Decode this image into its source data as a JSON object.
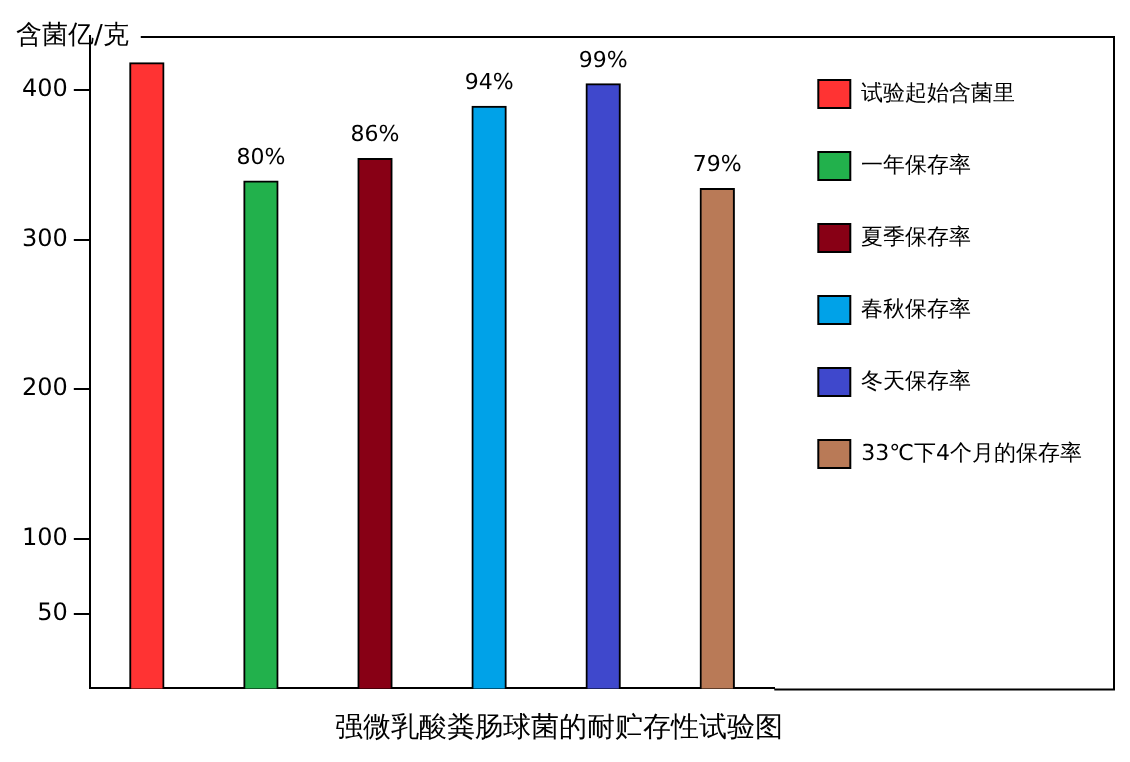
{
  "chart_data": {
    "type": "bar",
    "title": "强微乳酸粪肠球菌的耐贮存性试验图",
    "ylabel": "含菌亿/克",
    "categories": [
      null,
      null,
      null,
      null,
      null,
      null
    ],
    "series": [
      {
        "name": "试验起始含菌里",
        "color": "#ff3333",
        "values": [
          418,
          null,
          null,
          null,
          null,
          null
        ]
      },
      {
        "name": "一年保存率",
        "color": "#22b14c",
        "values": [
          null,
          339,
          null,
          null,
          null,
          null
        ]
      },
      {
        "name": "夏季保存率",
        "color": "#880015",
        "values": [
          null,
          null,
          354,
          null,
          null,
          null
        ]
      },
      {
        "name": "春秋保存率",
        "color": "#00a2e8",
        "values": [
          null,
          null,
          null,
          389,
          null,
          null
        ]
      },
      {
        "name": "冬天保存率",
        "color": "#3f48cc",
        "values": [
          null,
          null,
          null,
          null,
          404,
          null
        ]
      },
      {
        "name": "33℃下4个月的保存率",
        "color": "#b97a57",
        "values": [
          null,
          null,
          null,
          null,
          null,
          334
        ]
      }
    ],
    "annotations": [
      "80%",
      "86%",
      "94%",
      "99%",
      "79%"
    ],
    "stacked": true,
    "ylim": [
      0,
      436
    ],
    "yticks": [
      50,
      100,
      200,
      300,
      400
    ],
    "grid": false,
    "legend": "right",
    "tick_labels": "y"
  }
}
